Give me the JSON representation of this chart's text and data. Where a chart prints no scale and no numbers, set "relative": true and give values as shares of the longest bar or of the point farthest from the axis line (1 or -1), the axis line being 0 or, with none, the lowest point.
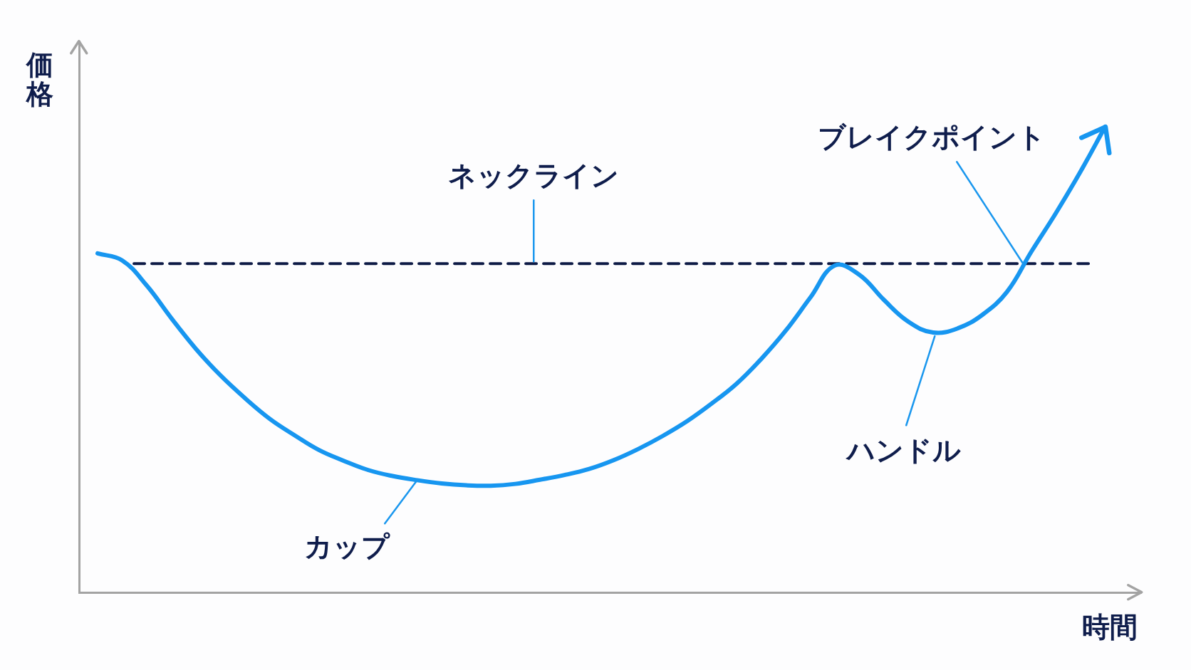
{
  "chart_data": {
    "type": "line",
    "xlabel": "時間",
    "ylabel": "価格",
    "relative": true,
    "categories": [
      null,
      null,
      null,
      null,
      null,
      null,
      null,
      null,
      null,
      null,
      null,
      null,
      null,
      null,
      null,
      null,
      null,
      null,
      null,
      null,
      null,
      null,
      null,
      null,
      null,
      null,
      null,
      null,
      null,
      null,
      null,
      null,
      null,
      null,
      null,
      null,
      null,
      null,
      null,
      null,
      null,
      null
    ],
    "values": [
      0.728,
      0.713,
      0.659,
      0.589,
      0.523,
      0.466,
      0.417,
      0.373,
      0.338,
      0.306,
      0.283,
      0.263,
      0.25,
      0.241,
      0.234,
      0.23,
      0.229,
      0.233,
      0.242,
      0.252,
      0.265,
      0.284,
      0.308,
      0.336,
      0.368,
      0.406,
      0.448,
      0.501,
      0.562,
      0.633,
      0.702,
      0.682,
      0.628,
      0.581,
      0.558,
      0.567,
      0.596,
      0.645,
      0.732,
      0.815,
      0.904,
      1
    ],
    "color": "#1796f0",
    "ref_lines": [
      {
        "axis": "y",
        "value": 0.706,
        "label": "ネックライン",
        "color": "#0d1a45",
        "line_style": "dashed"
      }
    ],
    "annotations": [
      "カップ",
      "ハンドル",
      "ブレイクポイント"
    ],
    "grid": false,
    "legend": false,
    "marker": "none",
    "line_style": "solid",
    "tick_labels": false
  }
}
